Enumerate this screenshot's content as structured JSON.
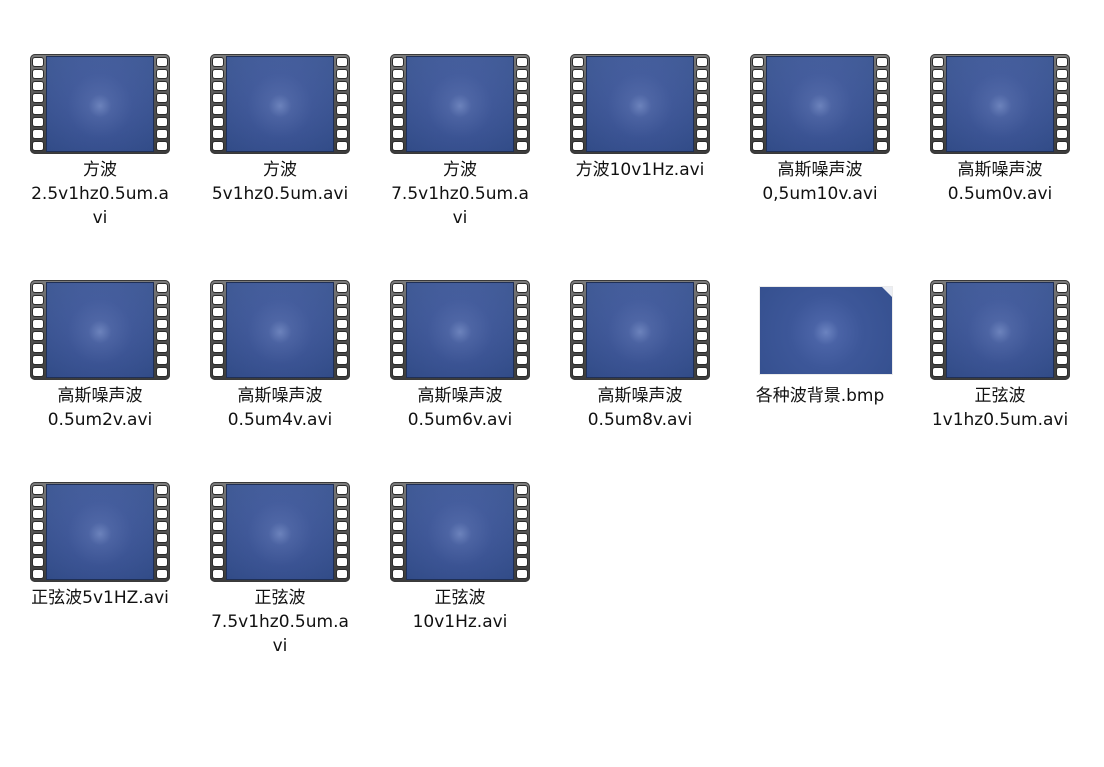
{
  "files": [
    {
      "name": "方波\n2.5v1hz0.5um.a\nvi",
      "type": "video",
      "icon": "video-file-icon"
    },
    {
      "name": "方波\n5v1hz0.5um.avi",
      "type": "video",
      "icon": "video-file-icon"
    },
    {
      "name": "方波\n7.5v1hz0.5um.a\nvi",
      "type": "video",
      "icon": "video-file-icon"
    },
    {
      "name": "方波10v1Hz.avi",
      "type": "video",
      "icon": "video-file-icon"
    },
    {
      "name": "高斯噪声波\n0,5um10v.avi",
      "type": "video",
      "icon": "video-file-icon"
    },
    {
      "name": "高斯噪声波\n0.5um0v.avi",
      "type": "video",
      "icon": "video-file-icon"
    },
    {
      "name": "高斯噪声波\n0.5um2v.avi",
      "type": "video",
      "icon": "video-file-icon"
    },
    {
      "name": "高斯噪声波\n0.5um4v.avi",
      "type": "video",
      "icon": "video-file-icon"
    },
    {
      "name": "高斯噪声波\n0.5um6v.avi",
      "type": "video",
      "icon": "video-file-icon"
    },
    {
      "name": "高斯噪声波\n0.5um8v.avi",
      "type": "video",
      "icon": "video-file-icon"
    },
    {
      "name": "各种波背景.bmp",
      "type": "image",
      "icon": "image-thumbnail-icon"
    },
    {
      "name": "正弦波\n1v1hz0.5um.avi",
      "type": "video",
      "icon": "video-file-icon"
    },
    {
      "name": "正弦波5v1HZ.avi",
      "type": "video",
      "icon": "video-file-icon"
    },
    {
      "name": "正弦波\n7.5v1hz0.5um.a\nvi",
      "type": "video",
      "icon": "video-file-icon"
    },
    {
      "name": "正弦波\n10v1Hz.avi",
      "type": "video",
      "icon": "video-file-icon"
    }
  ]
}
